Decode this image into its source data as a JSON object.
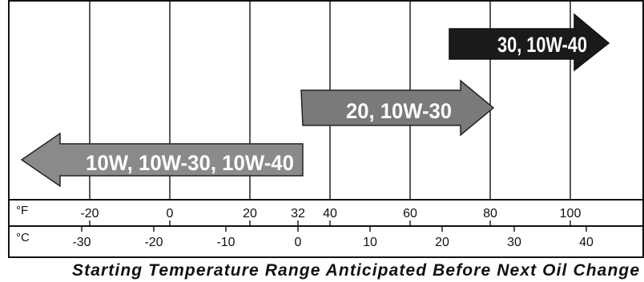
{
  "units": {
    "fahrenheit": "°F",
    "celsius": "°C"
  },
  "fahrenheit_ticks": [
    {
      "value": -20,
      "label": "-20"
    },
    {
      "value": 0,
      "label": "0"
    },
    {
      "value": 20,
      "label": "20"
    },
    {
      "value": 32,
      "label": "32"
    },
    {
      "value": 40,
      "label": "40"
    },
    {
      "value": 60,
      "label": "60"
    },
    {
      "value": 80,
      "label": "80"
    },
    {
      "value": 100,
      "label": "100"
    }
  ],
  "celsius_ticks": [
    {
      "value": -30,
      "label": "-30"
    },
    {
      "value": -20,
      "label": "-20"
    },
    {
      "value": -10,
      "label": "-10"
    },
    {
      "value": 0,
      "label": "0"
    },
    {
      "value": 10,
      "label": "10"
    },
    {
      "value": 20,
      "label": "20"
    },
    {
      "value": 30,
      "label": "30"
    },
    {
      "value": 40,
      "label": "40"
    }
  ],
  "oil_ranges": [
    {
      "label": "10W, 10W-30, 10W-40",
      "from_f": null,
      "to_f": 36,
      "direction": "left",
      "color": "#8a8a8a"
    },
    {
      "label": "20, 10W-30",
      "from_f": 32,
      "to_f": 80,
      "direction": "right",
      "color": "#7a7a7a"
    },
    {
      "label": "30, 10W-40",
      "from_f": 70,
      "to_f": null,
      "direction": "right",
      "color": "#1a1a1a"
    }
  ],
  "caption": "Starting Temperature Range Anticipated Before Next Oil Change"
}
